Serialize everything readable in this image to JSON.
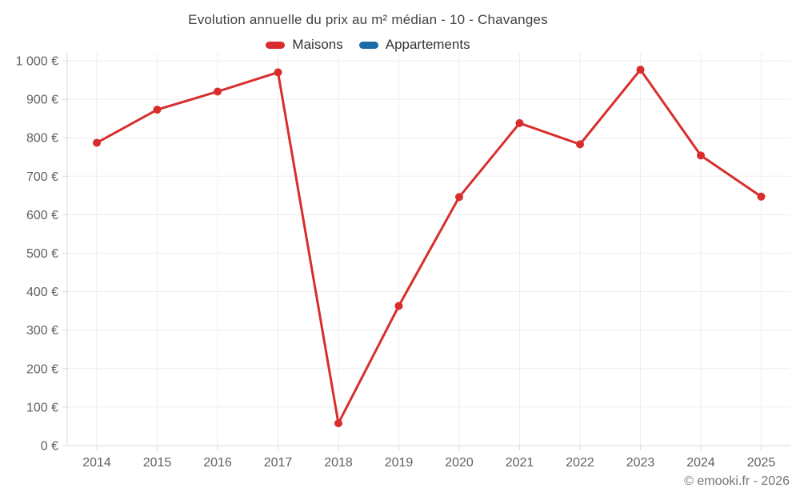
{
  "header": {
    "title": "Evolution annuelle du prix au m² médian - 10 - Chavanges"
  },
  "legend": {
    "items": [
      {
        "label": "Maisons",
        "color": "#d92d2d"
      },
      {
        "label": "Appartements",
        "color": "#1a6ca6"
      }
    ]
  },
  "footer": {
    "credit": "© emooki.fr - 2026"
  },
  "colors": {
    "maisons_line": "#d92d2d",
    "appartements_line": "#1a6ca6",
    "gridline": "#ededed",
    "axis": "#d9d9d9",
    "tick_text": "#616161"
  },
  "chart_data": {
    "type": "line",
    "title": "Evolution annuelle du prix au m² médian - 10 - Chavanges",
    "categories": [
      "2014",
      "2015",
      "2016",
      "2017",
      "2018",
      "2019",
      "2020",
      "2021",
      "2022",
      "2023",
      "2024",
      "2025"
    ],
    "series": [
      {
        "name": "Maisons",
        "color": "#d92d2d",
        "values": [
          787,
          873,
          920,
          970,
          58,
          363,
          646,
          838,
          783,
          977,
          754,
          647
        ]
      },
      {
        "name": "Appartements",
        "color": "#1a6ca6",
        "values": []
      }
    ],
    "xlabel": "",
    "ylabel": "",
    "ylim": [
      0,
      1000
    ],
    "y_tick_step": 100,
    "y_tick_labels": [
      "0 €",
      "100 €",
      "200 €",
      "300 €",
      "400 €",
      "500 €",
      "600 €",
      "700 €",
      "800 €",
      "900 €",
      "1 000 €"
    ],
    "currency_suffix": " €",
    "grid": true,
    "legend_position": "top",
    "footer_note": "© emooki.fr - 2026"
  }
}
